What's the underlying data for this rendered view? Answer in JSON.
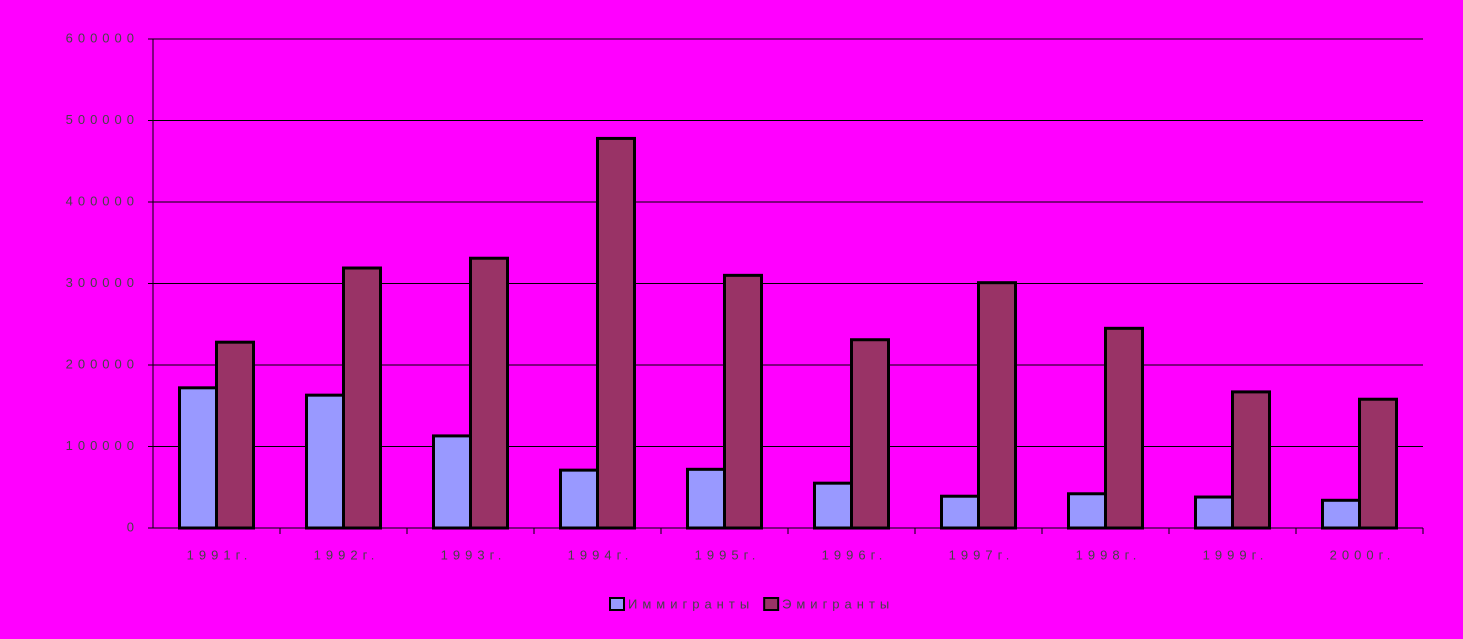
{
  "chart_data": {
    "type": "bar",
    "categories": [
      "1991г.",
      "1992г.",
      "1993г.",
      "1994г.",
      "1995г.",
      "1996г.",
      "1997г.",
      "1998г.",
      "1999г.",
      "2000г."
    ],
    "series": [
      {
        "name": "Иммигранты",
        "color": "#9999ff",
        "values": [
          172000,
          163000,
          113000,
          71000,
          72000,
          55000,
          39000,
          42000,
          38000,
          34000
        ]
      },
      {
        "name": "Эмигранты",
        "color": "#993366",
        "values": [
          228000,
          319000,
          331000,
          478000,
          310000,
          231000,
          301000,
          245000,
          167000,
          158000
        ]
      }
    ],
    "ylim": [
      0,
      600000
    ],
    "yticks": [
      0,
      100000,
      200000,
      300000,
      400000,
      500000,
      600000
    ],
    "grid": true,
    "legend": "bottom"
  }
}
